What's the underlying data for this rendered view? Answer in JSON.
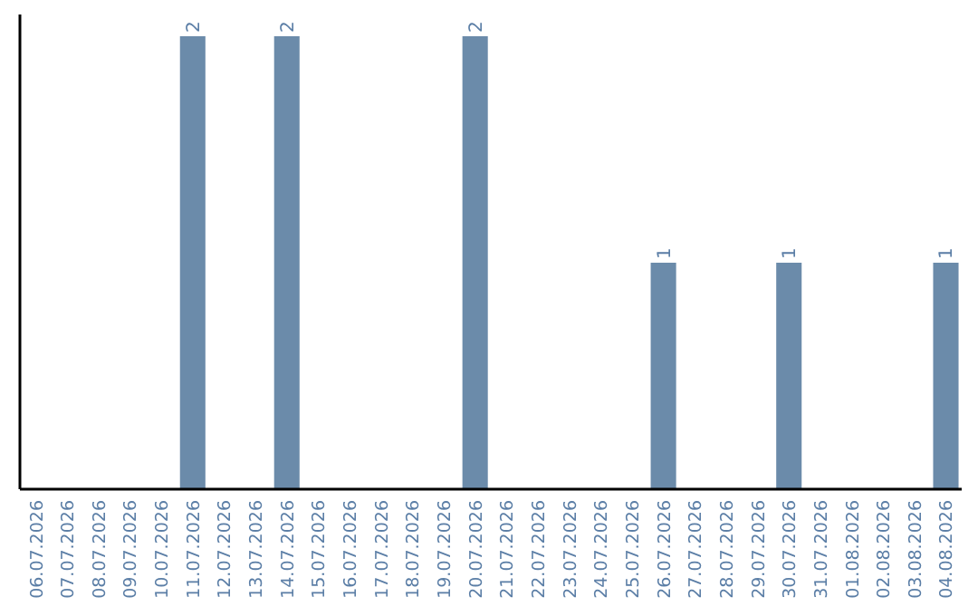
{
  "chart_data": {
    "type": "bar",
    "categories": [
      "06.07.2026",
      "07.07.2026",
      "08.07.2026",
      "09.07.2026",
      "10.07.2026",
      "11.07.2026",
      "12.07.2026",
      "13.07.2026",
      "14.07.2026",
      "15.07.2026",
      "16.07.2026",
      "17.07.2026",
      "18.07.2026",
      "19.07.2026",
      "20.07.2026",
      "21.07.2026",
      "22.07.2026",
      "23.07.2026",
      "24.07.2026",
      "25.07.2026",
      "26.07.2026",
      "27.07.2026",
      "28.07.2026",
      "29.07.2026",
      "30.07.2026",
      "31.07.2026",
      "01.08.2026",
      "02.08.2026",
      "03.08.2026",
      "04.08.2026"
    ],
    "values": [
      0,
      0,
      0,
      0,
      0,
      2,
      0,
      0,
      2,
      0,
      0,
      0,
      0,
      0,
      2,
      0,
      0,
      0,
      0,
      0,
      1,
      0,
      0,
      0,
      1,
      0,
      0,
      0,
      0,
      1
    ],
    "value_labels": [
      null,
      null,
      null,
      null,
      null,
      "2",
      null,
      null,
      "2",
      null,
      null,
      null,
      null,
      null,
      "2",
      null,
      null,
      null,
      null,
      null,
      "1",
      null,
      null,
      null,
      "1",
      null,
      null,
      null,
      null,
      "1"
    ],
    "color": "#6b8baa"
  }
}
